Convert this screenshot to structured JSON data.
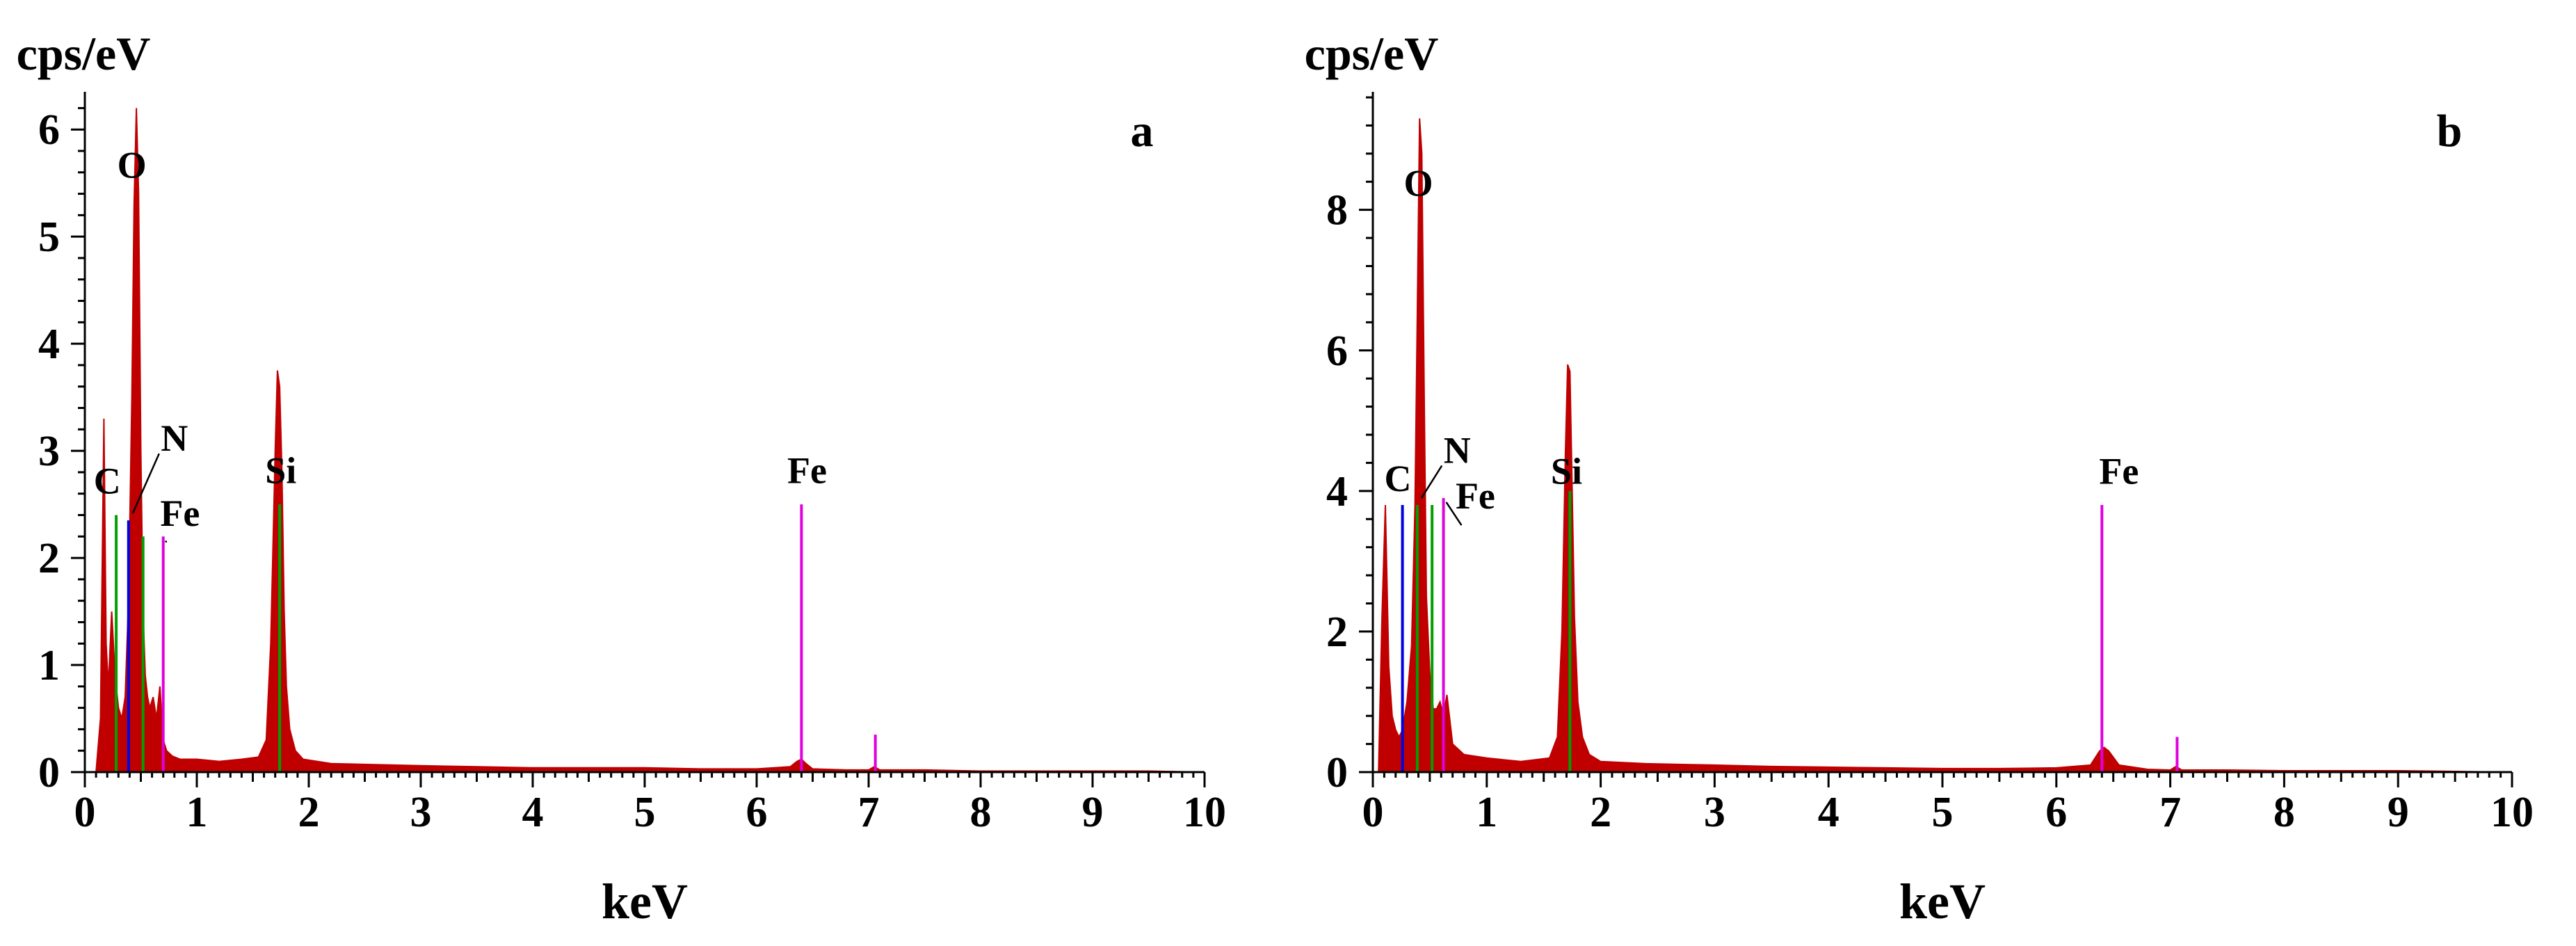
{
  "chart_data": [
    {
      "type": "area",
      "panel_label": "a",
      "ylabel": "cps/eV",
      "xlabel": "keV",
      "xlim": [
        0,
        10
      ],
      "ylim": [
        0,
        6.3
      ],
      "x_ticks": [
        "0",
        "1",
        "2",
        "3",
        "4",
        "5",
        "6",
        "7",
        "8",
        "9",
        "10"
      ],
      "y_ticks": [
        "0",
        "1",
        "2",
        "3",
        "4",
        "5",
        "6"
      ],
      "colors": {
        "spectrum": "#c00000",
        "C": "#00a000",
        "N": "#0000e0",
        "O": "#c00000",
        "Fe": "#e000e0",
        "Si": "#00a000"
      },
      "spectrum": {
        "x": [
          0.1,
          0.14,
          0.17,
          0.19,
          0.21,
          0.24,
          0.27,
          0.3,
          0.33,
          0.36,
          0.39,
          0.42,
          0.44,
          0.46,
          0.48,
          0.5,
          0.52,
          0.54,
          0.56,
          0.58,
          0.61,
          0.64,
          0.67,
          0.7,
          0.73,
          0.78,
          0.85,
          1.0,
          1.2,
          1.4,
          1.55,
          1.62,
          1.66,
          1.7,
          1.72,
          1.74,
          1.76,
          1.78,
          1.8,
          1.83,
          1.88,
          1.95,
          2.2,
          2.6,
          3.0,
          3.5,
          4.0,
          4.5,
          5.0,
          5.5,
          6.0,
          6.3,
          6.36,
          6.4,
          6.44,
          6.5,
          6.8,
          7.0,
          7.05,
          7.1,
          7.5,
          8.0,
          8.5,
          9.0,
          9.5,
          9.99
        ],
        "y": [
          0.0,
          0.5,
          3.3,
          1.2,
          0.8,
          1.5,
          0.9,
          0.6,
          0.5,
          0.7,
          1.6,
          3.5,
          5.3,
          6.2,
          5.4,
          3.0,
          1.5,
          0.9,
          0.7,
          0.6,
          0.7,
          0.5,
          0.8,
          0.3,
          0.2,
          0.15,
          0.12,
          0.12,
          0.1,
          0.12,
          0.14,
          0.3,
          1.2,
          3.0,
          3.75,
          3.6,
          2.8,
          1.5,
          0.8,
          0.4,
          0.2,
          0.12,
          0.08,
          0.07,
          0.06,
          0.05,
          0.04,
          0.04,
          0.04,
          0.03,
          0.03,
          0.05,
          0.1,
          0.12,
          0.08,
          0.03,
          0.02,
          0.02,
          0.05,
          0.02,
          0.02,
          0.01,
          0.01,
          0.01,
          0.01,
          0.0
        ]
      },
      "element_lines": [
        {
          "element": "C",
          "x": 0.28,
          "height": 2.4,
          "color": "#00a000"
        },
        {
          "element": "N",
          "x": 0.39,
          "height": 2.35,
          "color": "#0000e0"
        },
        {
          "element": "O",
          "x": 0.52,
          "height": 2.2,
          "color": "#00a000"
        },
        {
          "element": "Fe",
          "x": 0.7,
          "height": 2.2,
          "color": "#e000e0"
        },
        {
          "element": "Si",
          "x": 1.74,
          "height": 2.5,
          "color": "#00a000"
        },
        {
          "element": "Fe",
          "x": 6.4,
          "height": 2.5,
          "color": "#e000e0"
        },
        {
          "element": "Fe",
          "x": 7.06,
          "height": 0.35,
          "color": "#e000e0"
        }
      ],
      "annotations": [
        {
          "text": "O",
          "x": 0.42,
          "y": 5.55
        },
        {
          "text": "C",
          "x": 0.2,
          "y": 2.6
        },
        {
          "text": "N",
          "x": 0.8,
          "y": 3.0
        },
        {
          "text": "Fe",
          "x": 0.85,
          "y": 2.3
        },
        {
          "text": "Si",
          "x": 1.75,
          "y": 2.7
        },
        {
          "text": "Fe",
          "x": 6.45,
          "y": 2.7
        }
      ]
    },
    {
      "type": "area",
      "panel_label": "b",
      "ylabel": "cps/eV",
      "xlabel": "keV",
      "xlim": [
        0,
        10
      ],
      "ylim": [
        0,
        9.6
      ],
      "x_ticks": [
        "0",
        "1",
        "2",
        "3",
        "4",
        "5",
        "6",
        "7",
        "8",
        "9",
        "10"
      ],
      "y_ticks": [
        "0",
        "2",
        "4",
        "6",
        "8"
      ],
      "colors": {
        "spectrum": "#c00000",
        "C": "#0000e0",
        "N": "#00a000",
        "O": "#c00000",
        "Fe": "#e000e0",
        "Si": "#00a000"
      },
      "spectrum": {
        "x": [
          0.05,
          0.08,
          0.11,
          0.14,
          0.17,
          0.2,
          0.23,
          0.26,
          0.3,
          0.34,
          0.37,
          0.39,
          0.41,
          0.43,
          0.45,
          0.47,
          0.5,
          0.53,
          0.56,
          0.59,
          0.62,
          0.65,
          0.7,
          0.8,
          1.0,
          1.3,
          1.55,
          1.62,
          1.66,
          1.69,
          1.71,
          1.73,
          1.75,
          1.77,
          1.8,
          1.84,
          1.9,
          2.0,
          2.4,
          3.0,
          3.5,
          4.0,
          4.5,
          5.0,
          5.5,
          6.0,
          6.3,
          6.38,
          6.42,
          6.46,
          6.55,
          6.8,
          7.0,
          7.05,
          7.1,
          7.5,
          8.0,
          8.5,
          9.0,
          9.5,
          9.99
        ],
        "y": [
          0.0,
          2.2,
          3.8,
          1.5,
          0.8,
          0.6,
          0.5,
          0.6,
          1.0,
          1.8,
          3.8,
          6.5,
          9.3,
          8.8,
          5.5,
          2.5,
          1.4,
          0.9,
          0.9,
          1.0,
          0.8,
          1.1,
          0.4,
          0.25,
          0.2,
          0.15,
          0.2,
          0.5,
          2.0,
          4.5,
          5.8,
          5.7,
          4.0,
          2.2,
          1.0,
          0.5,
          0.25,
          0.15,
          0.12,
          0.1,
          0.08,
          0.07,
          0.06,
          0.05,
          0.05,
          0.06,
          0.1,
          0.3,
          0.35,
          0.3,
          0.1,
          0.04,
          0.03,
          0.08,
          0.03,
          0.03,
          0.02,
          0.02,
          0.02,
          0.01,
          0.0
        ]
      },
      "element_lines": [
        {
          "element": "C",
          "x": 0.26,
          "height": 3.8,
          "color": "#0000e0"
        },
        {
          "element": "N",
          "x": 0.39,
          "height": 3.8,
          "color": "#00a000"
        },
        {
          "element": "O",
          "x": 0.52,
          "height": 3.8,
          "color": "#00a000"
        },
        {
          "element": "Fe",
          "x": 0.62,
          "height": 3.9,
          "color": "#e000e0"
        },
        {
          "element": "Si",
          "x": 1.73,
          "height": 4.0,
          "color": "#00a000"
        },
        {
          "element": "Fe",
          "x": 6.4,
          "height": 3.8,
          "color": "#e000e0"
        },
        {
          "element": "Fe",
          "x": 7.06,
          "height": 0.5,
          "color": "#e000e0"
        }
      ],
      "annotations": [
        {
          "text": "O",
          "x": 0.4,
          "y": 8.2
        },
        {
          "text": "C",
          "x": 0.22,
          "y": 4.0
        },
        {
          "text": "N",
          "x": 0.74,
          "y": 4.4
        },
        {
          "text": "Fe",
          "x": 0.9,
          "y": 3.75
        },
        {
          "text": "Si",
          "x": 1.7,
          "y": 4.1
        },
        {
          "text": "Fe",
          "x": 6.55,
          "y": 4.1
        }
      ]
    }
  ]
}
